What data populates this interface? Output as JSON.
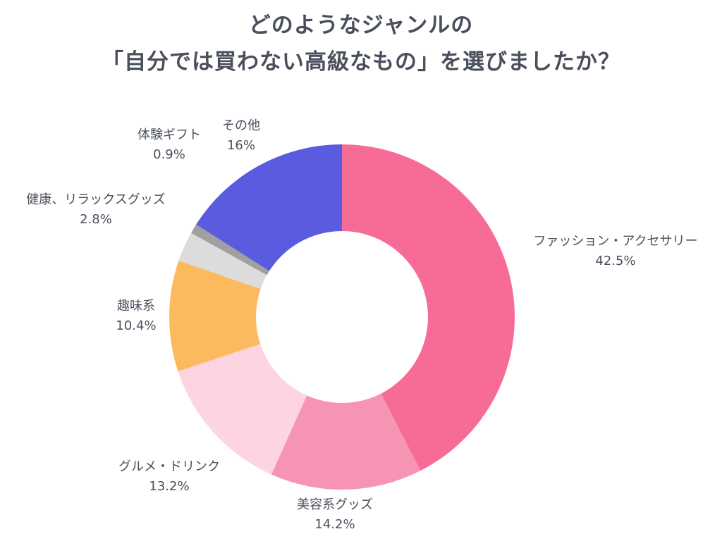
{
  "title": {
    "line1": "どのようなジャンルの",
    "line2": "「自分では買わない高級なもの」を選びましたか？"
  },
  "chart_data": {
    "type": "pie",
    "variant": "donut",
    "title": "どのようなジャンルの「自分では買わない高級なもの」を選びましたか？",
    "unit": "%",
    "categories": [
      "ファッション・アクセサリー",
      "美容系グッズ",
      "グルメ・ドリンク",
      "趣味系",
      "健康、リラックスグッズ",
      "体験ギフト",
      "その他"
    ],
    "values": [
      42.5,
      14.2,
      13.2,
      10.4,
      2.8,
      0.9,
      16
    ],
    "value_labels": [
      "42.5%",
      "14.2%",
      "13.2%",
      "10.4%",
      "2.8%",
      "0.9%",
      "16%"
    ],
    "colors": [
      "#f76b97",
      "#f595b3",
      "#fdd4e1",
      "#fcba5e",
      "#dcdcdc",
      "#a0a0a0",
      "#5b5bdf"
    ],
    "start": "12 o'clock",
    "direction": "clockwise"
  }
}
